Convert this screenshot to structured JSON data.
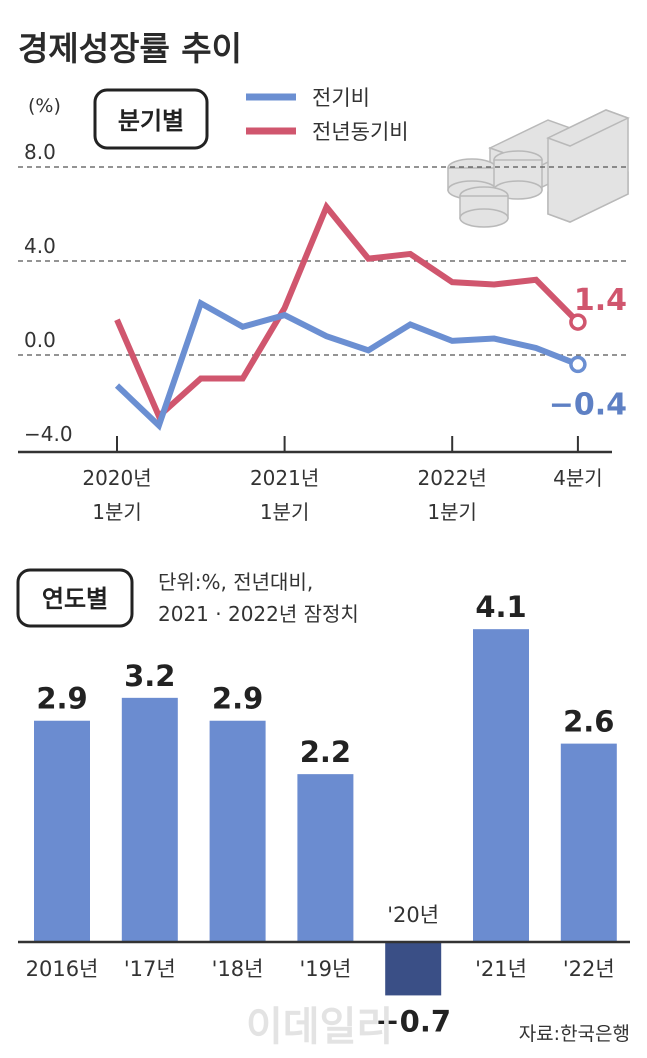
{
  "title": "경제성장률 추이",
  "source": "자료:한국은행",
  "watermark": "이데일리",
  "colors": {
    "qoq": "#6b8fd2",
    "yoy": "#d0566e",
    "bar": "#6b8cd0",
    "bar_negative": "#3a4f86"
  },
  "chart_data": [
    {
      "type": "line",
      "badge": "분기별",
      "ylabel": "(%)",
      "ylim": [
        -4,
        8
      ],
      "yticks": [
        "8.0",
        "4.0",
        "0.0",
        "-4.0"
      ],
      "grid_values": [
        8,
        4,
        0
      ],
      "x_labels": [
        {
          "index": 0,
          "line1": "2020년",
          "line2": "1분기"
        },
        {
          "index": 4,
          "line1": "2021년",
          "line2": "1분기"
        },
        {
          "index": 8,
          "line1": "2022년",
          "line2": "1분기"
        },
        {
          "index": 11,
          "line1": "4분기",
          "line2": ""
        }
      ],
      "series": [
        {
          "name": "전기비",
          "color": "#6b8fd2",
          "values": [
            -1.3,
            -3.0,
            2.2,
            1.2,
            1.7,
            0.8,
            0.2,
            1.3,
            0.6,
            0.7,
            0.3,
            -0.4
          ],
          "end_label": "-0.4"
        },
        {
          "name": "전년동기비",
          "color": "#d0566e",
          "values": [
            1.5,
            -2.6,
            -1.0,
            -1.0,
            2.0,
            6.3,
            4.1,
            4.3,
            3.1,
            3.0,
            3.2,
            1.4
          ],
          "end_label": "1.4"
        }
      ]
    },
    {
      "type": "bar",
      "badge": "연도별",
      "note_line1": "단위:%, 전년대비,",
      "note_line2": "2021 · 2022년 잠정치",
      "categories": [
        "2016년",
        "'17년",
        "'18년",
        "'19년",
        "'20년",
        "'21년",
        "'22년"
      ],
      "values": [
        2.9,
        3.2,
        2.9,
        2.2,
        -0.7,
        4.1,
        2.6
      ],
      "value_labels": [
        "2.9",
        "3.2",
        "2.9",
        "2.2",
        "-0.7",
        "4.1",
        "2.6"
      ]
    }
  ]
}
